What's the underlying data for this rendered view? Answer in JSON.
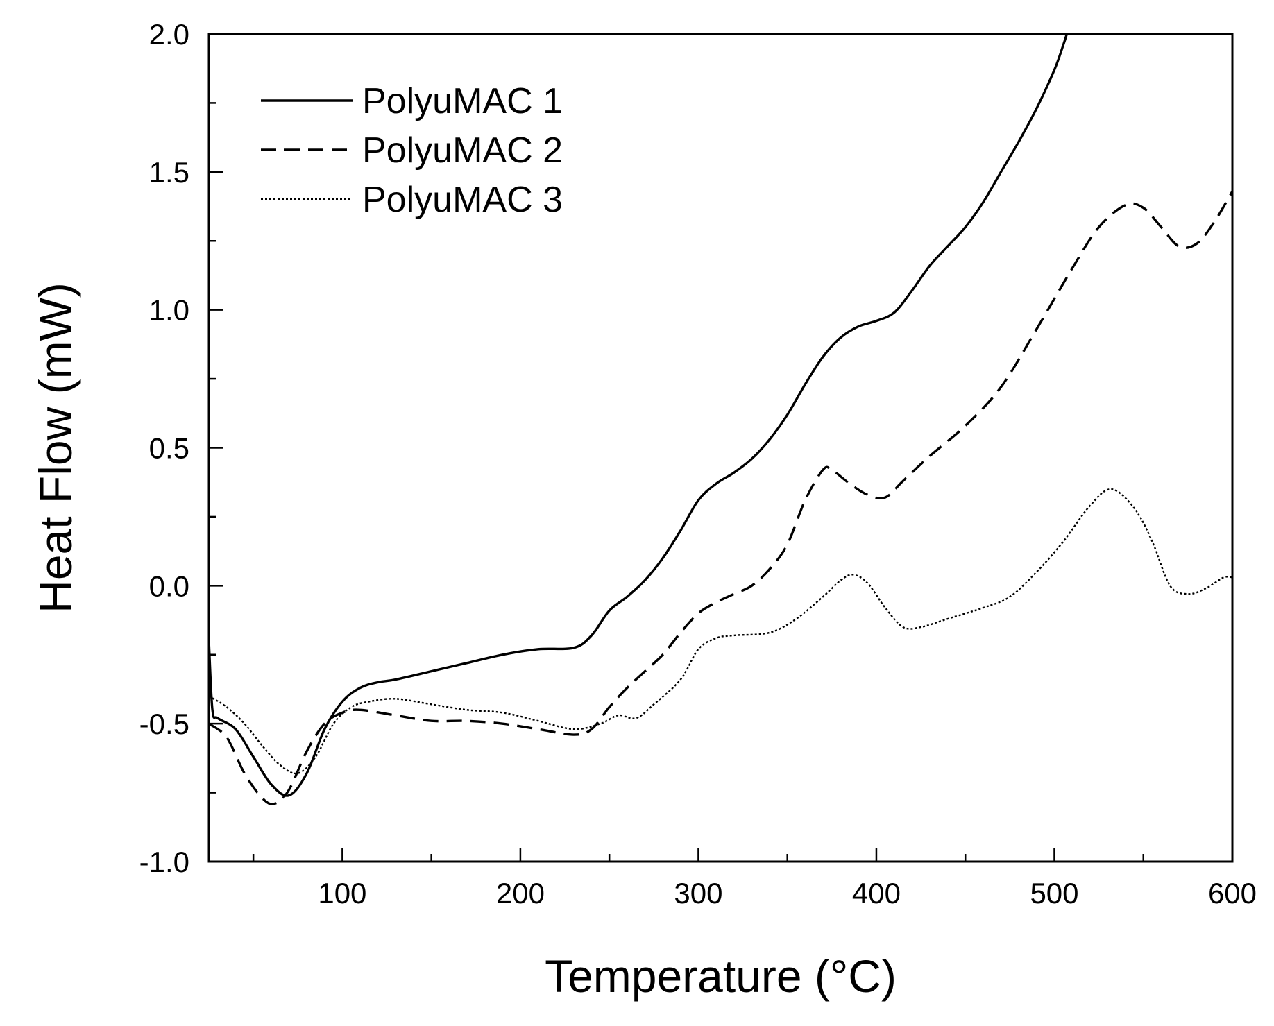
{
  "chart_data": {
    "type": "line",
    "title": "",
    "xlabel": "Temperature (°C)",
    "ylabel": "Heat Flow (mW)",
    "xlim": [
      25,
      600
    ],
    "ylim": [
      -1.0,
      2.0
    ],
    "x_ticks": [
      100,
      200,
      300,
      400,
      500,
      600
    ],
    "x_tick_labels": [
      "100",
      "200",
      "300",
      "400",
      "500",
      "600"
    ],
    "y_ticks": [
      -1.0,
      -0.5,
      0.0,
      0.5,
      1.0,
      1.5,
      2.0
    ],
    "y_tick_labels": [
      "-1.0",
      "-0.5",
      "0.0",
      "0.5",
      "1.0",
      "1.5",
      "2.0"
    ],
    "grid": false,
    "legend_position": "top-left",
    "series": [
      {
        "name": "PolyuMAC 1",
        "style": "solid",
        "color": "#000000",
        "points": [
          [
            25,
            -0.2
          ],
          [
            27,
            -0.45
          ],
          [
            30,
            -0.48
          ],
          [
            40,
            -0.52
          ],
          [
            50,
            -0.62
          ],
          [
            60,
            -0.72
          ],
          [
            70,
            -0.76
          ],
          [
            80,
            -0.68
          ],
          [
            90,
            -0.52
          ],
          [
            100,
            -0.42
          ],
          [
            110,
            -0.37
          ],
          [
            120,
            -0.35
          ],
          [
            130,
            -0.34
          ],
          [
            150,
            -0.31
          ],
          [
            170,
            -0.28
          ],
          [
            190,
            -0.25
          ],
          [
            210,
            -0.23
          ],
          [
            230,
            -0.225
          ],
          [
            240,
            -0.18
          ],
          [
            250,
            -0.09
          ],
          [
            260,
            -0.04
          ],
          [
            270,
            0.02
          ],
          [
            280,
            0.1
          ],
          [
            290,
            0.2
          ],
          [
            300,
            0.31
          ],
          [
            310,
            0.37
          ],
          [
            320,
            0.41
          ],
          [
            330,
            0.46
          ],
          [
            340,
            0.53
          ],
          [
            350,
            0.62
          ],
          [
            360,
            0.73
          ],
          [
            370,
            0.83
          ],
          [
            380,
            0.9
          ],
          [
            390,
            0.94
          ],
          [
            400,
            0.96
          ],
          [
            410,
            0.99
          ],
          [
            420,
            1.07
          ],
          [
            430,
            1.16
          ],
          [
            440,
            1.23
          ],
          [
            450,
            1.3
          ],
          [
            460,
            1.39
          ],
          [
            470,
            1.5
          ],
          [
            480,
            1.61
          ],
          [
            490,
            1.73
          ],
          [
            500,
            1.87
          ],
          [
            505,
            1.96
          ],
          [
            507,
            2.0
          ]
        ]
      },
      {
        "name": "PolyuMAC 2",
        "style": "dashed",
        "color": "#000000",
        "points": [
          [
            25,
            -0.5
          ],
          [
            35,
            -0.55
          ],
          [
            45,
            -0.68
          ],
          [
            55,
            -0.77
          ],
          [
            62,
            -0.79
          ],
          [
            70,
            -0.74
          ],
          [
            80,
            -0.6
          ],
          [
            90,
            -0.5
          ],
          [
            100,
            -0.46
          ],
          [
            110,
            -0.45
          ],
          [
            130,
            -0.47
          ],
          [
            150,
            -0.49
          ],
          [
            170,
            -0.49
          ],
          [
            190,
            -0.5
          ],
          [
            210,
            -0.52
          ],
          [
            230,
            -0.54
          ],
          [
            240,
            -0.52
          ],
          [
            250,
            -0.44
          ],
          [
            260,
            -0.37
          ],
          [
            270,
            -0.31
          ],
          [
            280,
            -0.25
          ],
          [
            290,
            -0.17
          ],
          [
            300,
            -0.1
          ],
          [
            310,
            -0.06
          ],
          [
            320,
            -0.03
          ],
          [
            330,
            0.0
          ],
          [
            340,
            0.06
          ],
          [
            350,
            0.15
          ],
          [
            360,
            0.31
          ],
          [
            370,
            0.42
          ],
          [
            375,
            0.42
          ],
          [
            385,
            0.37
          ],
          [
            395,
            0.33
          ],
          [
            405,
            0.32
          ],
          [
            415,
            0.38
          ],
          [
            430,
            0.47
          ],
          [
            450,
            0.58
          ],
          [
            470,
            0.72
          ],
          [
            490,
            0.93
          ],
          [
            510,
            1.15
          ],
          [
            525,
            1.3
          ],
          [
            540,
            1.38
          ],
          [
            550,
            1.37
          ],
          [
            560,
            1.3
          ],
          [
            570,
            1.23
          ],
          [
            580,
            1.24
          ],
          [
            590,
            1.32
          ],
          [
            600,
            1.43
          ]
        ]
      },
      {
        "name": "PolyuMAC 3",
        "style": "dotted",
        "color": "#000000",
        "points": [
          [
            25,
            -0.4
          ],
          [
            35,
            -0.44
          ],
          [
            45,
            -0.5
          ],
          [
            55,
            -0.58
          ],
          [
            65,
            -0.65
          ],
          [
            75,
            -0.68
          ],
          [
            85,
            -0.62
          ],
          [
            95,
            -0.5
          ],
          [
            105,
            -0.44
          ],
          [
            115,
            -0.42
          ],
          [
            130,
            -0.41
          ],
          [
            150,
            -0.43
          ],
          [
            170,
            -0.45
          ],
          [
            190,
            -0.46
          ],
          [
            210,
            -0.49
          ],
          [
            230,
            -0.52
          ],
          [
            245,
            -0.5
          ],
          [
            255,
            -0.47
          ],
          [
            265,
            -0.48
          ],
          [
            275,
            -0.43
          ],
          [
            290,
            -0.34
          ],
          [
            300,
            -0.23
          ],
          [
            310,
            -0.19
          ],
          [
            320,
            -0.18
          ],
          [
            340,
            -0.17
          ],
          [
            355,
            -0.12
          ],
          [
            370,
            -0.04
          ],
          [
            380,
            0.02
          ],
          [
            387,
            0.04
          ],
          [
            395,
            0.01
          ],
          [
            405,
            -0.08
          ],
          [
            415,
            -0.15
          ],
          [
            425,
            -0.15
          ],
          [
            440,
            -0.12
          ],
          [
            460,
            -0.08
          ],
          [
            475,
            -0.04
          ],
          [
            490,
            0.05
          ],
          [
            505,
            0.16
          ],
          [
            520,
            0.29
          ],
          [
            532,
            0.35
          ],
          [
            545,
            0.28
          ],
          [
            555,
            0.16
          ],
          [
            565,
            0.0
          ],
          [
            575,
            -0.03
          ],
          [
            585,
            -0.01
          ],
          [
            595,
            0.03
          ],
          [
            600,
            0.03
          ]
        ]
      }
    ]
  }
}
